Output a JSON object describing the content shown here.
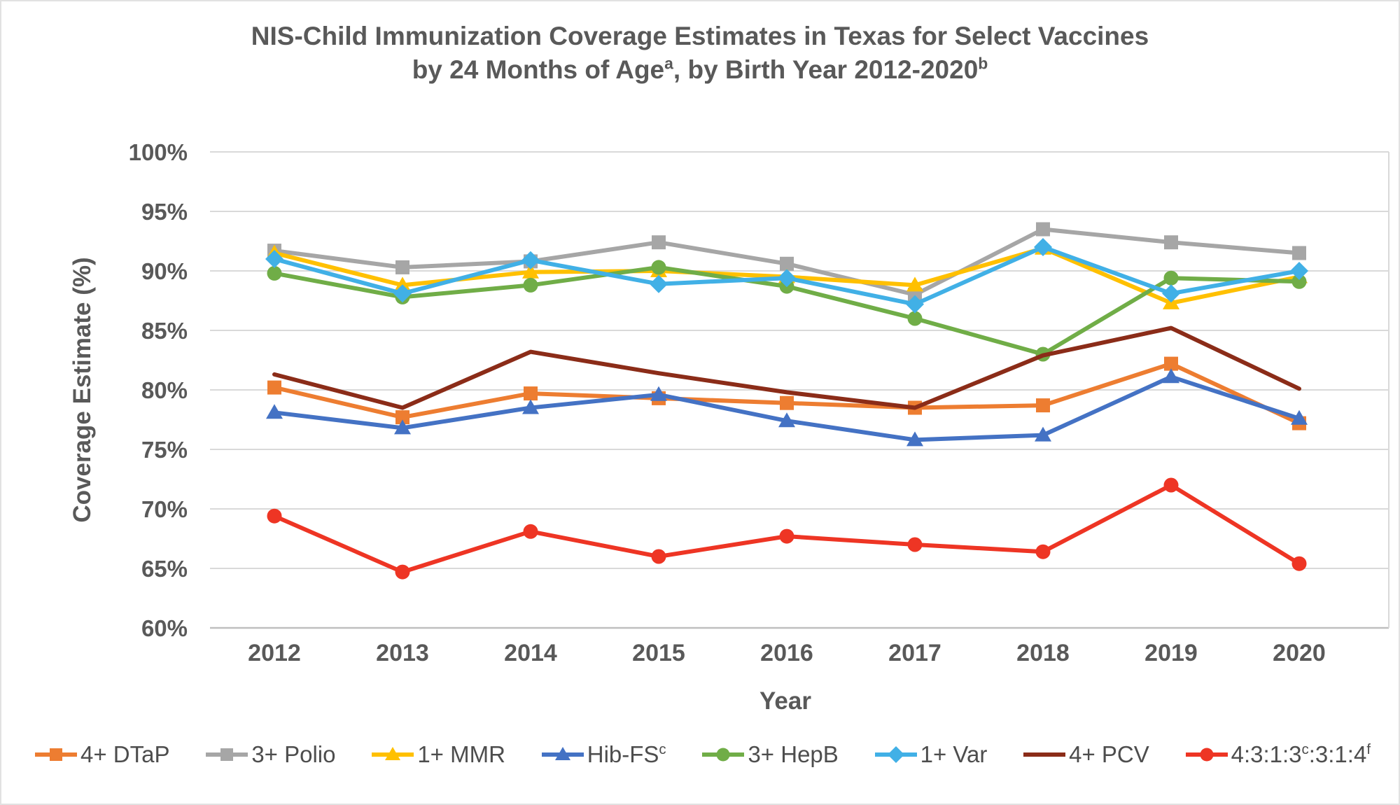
{
  "frame": {
    "background": "#ffffff",
    "border_color": "#e2e2e2"
  },
  "title": {
    "line1": "NIS-Child Immunization Coverage Estimates in Texas for Select Vaccines",
    "line2_parts": [
      {
        "t": "by 24 Months of Age"
      },
      {
        "t": "a",
        "sup": true
      },
      {
        "t": ", by Birth Year 2012-2020"
      },
      {
        "t": "b",
        "sup": true
      }
    ],
    "color": "#595959"
  },
  "chart_data": {
    "type": "line",
    "x": [
      "2012",
      "2013",
      "2014",
      "2015",
      "2016",
      "2017",
      "2018",
      "2019",
      "2020"
    ],
    "xlabel": "Year",
    "ylabel": "Coverage Estimate (%)",
    "ylim": [
      60,
      100
    ],
    "yticks": [
      [
        100,
        "100%"
      ],
      [
        95,
        "95%"
      ],
      [
        90,
        "90%"
      ],
      [
        85,
        "85%"
      ],
      [
        80,
        "80%"
      ],
      [
        75,
        "75%"
      ],
      [
        70,
        "70%"
      ],
      [
        65,
        "65%"
      ],
      [
        60,
        "60%"
      ]
    ],
    "grid": true,
    "legend_position": "bottom",
    "axis_text_color": "#595959",
    "legend_text_color": "#4d4d4d",
    "gridline_color": "#d9d9d9",
    "axisline_color": "#bfbfbf",
    "series": [
      {
        "name_parts": [
          {
            "t": "4+ DTaP"
          }
        ],
        "color": "#ED7D31",
        "marker": "square",
        "values": [
          80.2,
          77.7,
          79.7,
          79.3,
          78.9,
          78.5,
          78.7,
          82.2,
          77.2
        ]
      },
      {
        "name_parts": [
          {
            "t": "3+ Polio"
          }
        ],
        "color": "#A6A6A6",
        "marker": "square",
        "values": [
          91.7,
          90.3,
          90.8,
          92.4,
          90.6,
          88.0,
          93.5,
          92.4,
          91.5
        ]
      },
      {
        "name_parts": [
          {
            "t": "1+ MMR"
          }
        ],
        "color": "#FFC000",
        "marker": "triangle",
        "values": [
          91.5,
          88.8,
          89.9,
          90.0,
          89.5,
          88.8,
          91.9,
          87.3,
          89.5
        ]
      },
      {
        "name_parts": [
          {
            "t": "Hib-FS"
          },
          {
            "t": "c",
            "sup": true
          }
        ],
        "color": "#4472C4",
        "marker": "triangle",
        "values": [
          78.1,
          76.8,
          78.5,
          79.6,
          77.4,
          75.8,
          76.2,
          81.1,
          77.6
        ]
      },
      {
        "name_parts": [
          {
            "t": "3+ HepB"
          }
        ],
        "color": "#70AD47",
        "marker": "circle",
        "values": [
          89.8,
          87.8,
          88.8,
          90.3,
          88.7,
          86.0,
          83.0,
          89.4,
          89.1
        ]
      },
      {
        "name_parts": [
          {
            "t": "1+ Var"
          }
        ],
        "color": "#41B0E6",
        "marker": "diamond",
        "values": [
          91.0,
          88.1,
          90.9,
          88.9,
          89.4,
          87.2,
          92.0,
          88.1,
          90.0
        ]
      },
      {
        "name_parts": [
          {
            "t": "4+ PCV"
          }
        ],
        "color": "#8B2C18",
        "marker": "none",
        "values": [
          81.3,
          78.5,
          83.2,
          81.4,
          79.8,
          78.5,
          82.9,
          85.2,
          80.1
        ]
      },
      {
        "name_parts": [
          {
            "t": "4:3:1:3"
          },
          {
            "t": "c",
            "sup": true
          },
          {
            "t": ":3:1:4"
          },
          {
            "t": "f",
            "sup": true
          }
        ],
        "color": "#EE3524",
        "marker": "circle",
        "values": [
          69.4,
          64.7,
          68.1,
          66.0,
          67.7,
          67.0,
          66.4,
          72.0,
          65.4
        ]
      }
    ]
  }
}
